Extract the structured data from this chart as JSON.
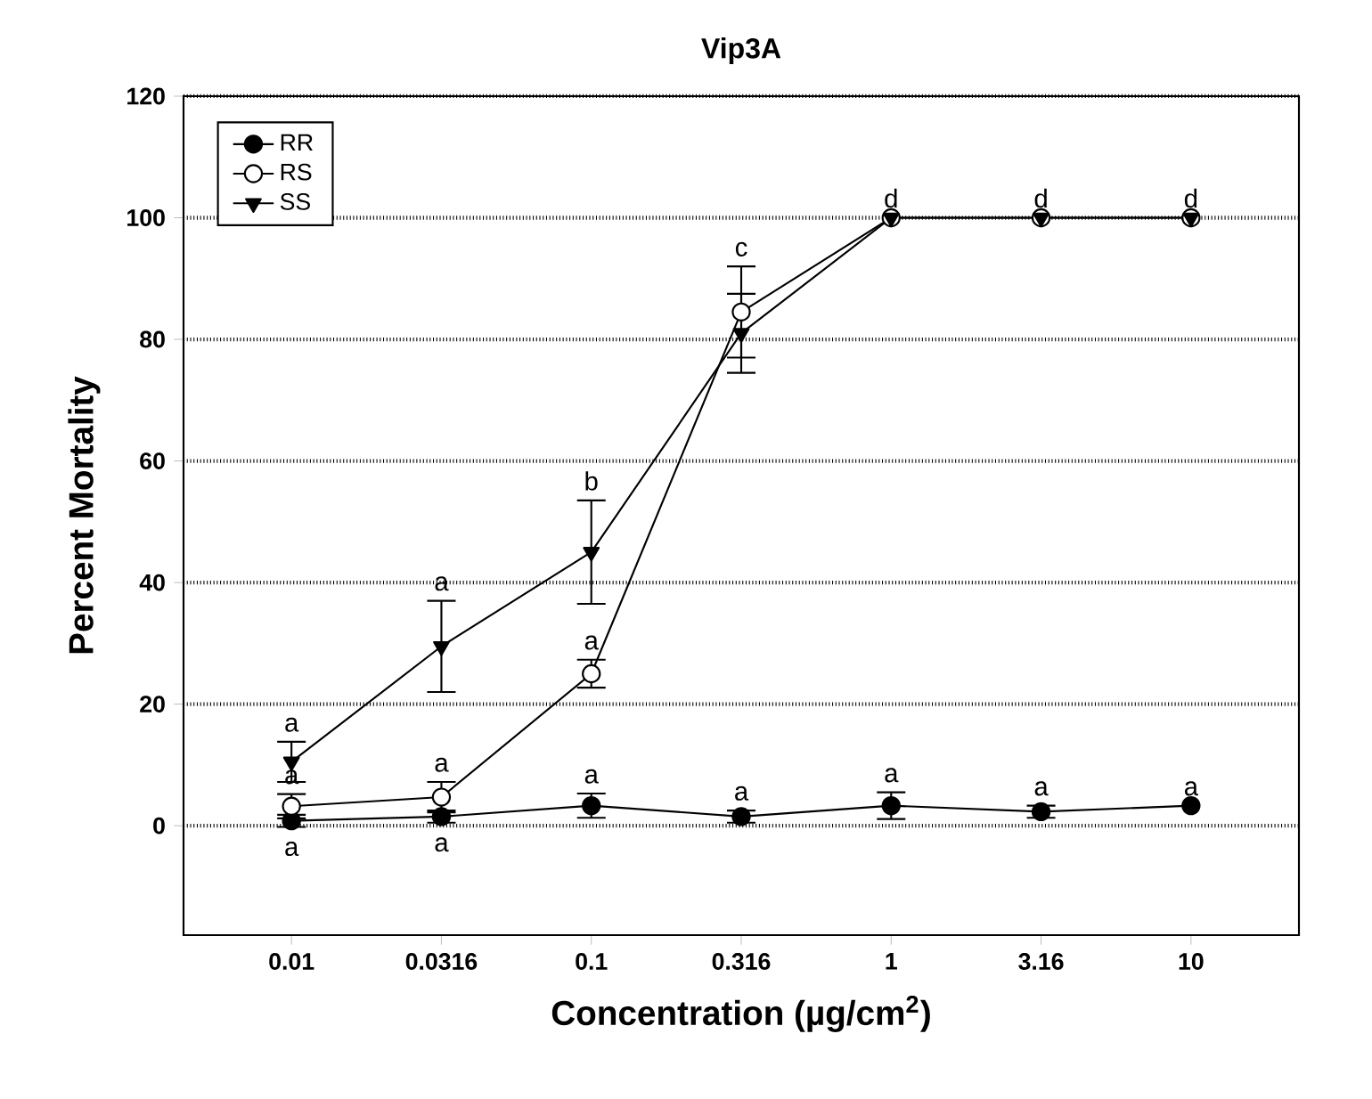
{
  "chart_data": {
    "type": "line",
    "title": "Vip3A",
    "xlabel": "Concentration (µg/cm$^{2}$)",
    "ylabel": "Percent Mortality",
    "categories": [
      "0.01",
      "0.0316",
      "0.1",
      "0.316",
      "1",
      "3.16",
      "10"
    ],
    "series": [
      {
        "name": "RR",
        "color": "#000000",
        "marker": "circle",
        "values": [
          0.8,
          1.5,
          3.3,
          1.5,
          3.3,
          2.3,
          3.3
        ],
        "errors": [
          1,
          1,
          2,
          1,
          2.2,
          1,
          null
        ]
      },
      {
        "name": "RS",
        "color": "#ffffff",
        "marker": "circle",
        "values": [
          3.2,
          4.7,
          25,
          84.5,
          100,
          100,
          100
        ],
        "errors": [
          2,
          2.5,
          2.3,
          7.5,
          null,
          null,
          null
        ]
      },
      {
        "name": "SS",
        "color": "#000000",
        "marker": "triangle",
        "values": [
          10.5,
          29.5,
          45,
          81,
          100,
          100,
          100
        ],
        "errors": [
          3.3,
          7.5,
          8.5,
          6.5,
          null,
          null,
          null
        ]
      }
    ],
    "ylim": [
      -18,
      120
    ],
    "yticks": [
      0,
      20,
      40,
      60,
      80,
      100,
      120
    ],
    "grid": "y",
    "legend": "top left",
    "line_style": "solid",
    "annotations": [
      {
        "text": "a",
        "x": "0.01",
        "y": 10.5
      },
      {
        "text": "a",
        "x": "0.01",
        "y": 3.2
      },
      {
        "text": "a",
        "x": "0.01",
        "y": 0.8
      },
      {
        "text": "a",
        "x": "0.0316",
        "y": 29.5
      },
      {
        "text": "a",
        "x": "0.0316",
        "y": 4.7
      },
      {
        "text": "a",
        "x": "0.0316",
        "y": 1.5
      },
      {
        "text": "b",
        "x": "0.1",
        "y": 45
      },
      {
        "text": "a",
        "x": "0.1",
        "y": 25
      },
      {
        "text": "a",
        "x": "0.1",
        "y": 3.3
      },
      {
        "text": "c",
        "x": "0.316",
        "y": 84.5
      },
      {
        "text": "a",
        "x": "0.316",
        "y": 1.5
      },
      {
        "text": "d",
        "x": "1",
        "y": 100
      },
      {
        "text": "a",
        "x": "1",
        "y": 3.3
      },
      {
        "text": "d",
        "x": "3.16",
        "y": 100
      },
      {
        "text": "a",
        "x": "3.16",
        "y": 2.3
      },
      {
        "text": "d",
        "x": "10",
        "y": 100
      },
      {
        "text": "a",
        "x": "10",
        "y": 3.3
      }
    ]
  }
}
